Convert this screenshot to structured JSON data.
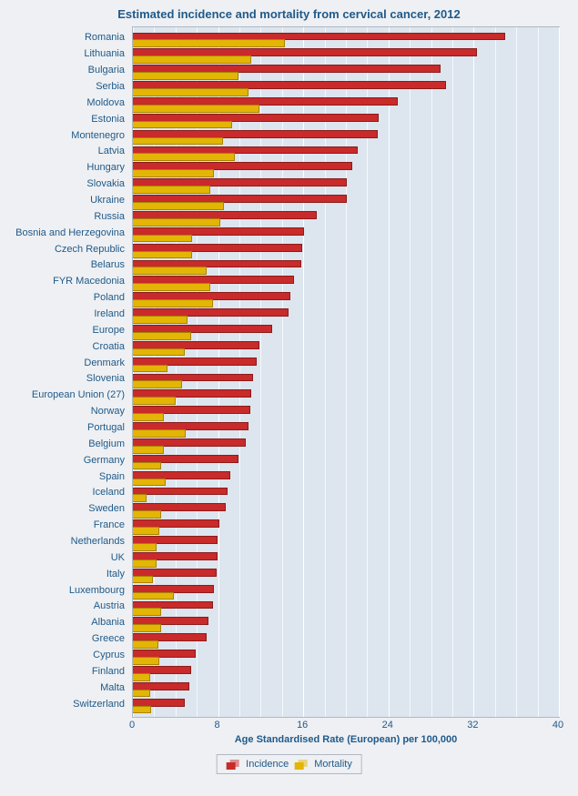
{
  "title": "Estimated incidence and mortality from cervical cancer, 2012",
  "title_fontsize": 13,
  "background_color": "#eef0f3",
  "plot_background_color": "#dde5ee",
  "grid_color": "#ffffff",
  "axis_text_color": "#205a8a",
  "label_fontsize": 11,
  "tick_fontsize": 11,
  "xlabel": "Age Standardised Rate (European) per 100,000",
  "xlabel_fontsize": 11,
  "xlim": [
    0,
    40
  ],
  "xtick_step_major": 8,
  "xtick_step_minor": 2,
  "series": {
    "incidence": {
      "label": "Incidence",
      "color": "#c92a2a",
      "border": "#8a1c1c"
    },
    "mortality": {
      "label": "Mortality",
      "color": "#e3b505",
      "border": "#a78300"
    }
  },
  "countries": [
    {
      "name": "Romania",
      "incidence": 34.9,
      "mortality": 14.2
    },
    {
      "name": "Lithuania",
      "incidence": 32.2,
      "mortality": 11.0
    },
    {
      "name": "Bulgaria",
      "incidence": 28.8,
      "mortality": 9.8
    },
    {
      "name": "Serbia",
      "incidence": 29.3,
      "mortality": 10.8
    },
    {
      "name": "Moldova",
      "incidence": 24.8,
      "mortality": 11.8
    },
    {
      "name": "Estonia",
      "incidence": 23.0,
      "mortality": 9.2
    },
    {
      "name": "Montenegro",
      "incidence": 22.9,
      "mortality": 8.4
    },
    {
      "name": "Latvia",
      "incidence": 21.0,
      "mortality": 9.5
    },
    {
      "name": "Hungary",
      "incidence": 20.5,
      "mortality": 7.5
    },
    {
      "name": "Slovakia",
      "incidence": 20.0,
      "mortality": 7.2
    },
    {
      "name": "Ukraine",
      "incidence": 20.0,
      "mortality": 8.5
    },
    {
      "name": "Russia",
      "incidence": 17.2,
      "mortality": 8.1
    },
    {
      "name": "Bosnia and Herzegovina",
      "incidence": 16.0,
      "mortality": 5.5
    },
    {
      "name": "Czech Republic",
      "incidence": 15.8,
      "mortality": 5.5
    },
    {
      "name": "Belarus",
      "incidence": 15.7,
      "mortality": 6.8
    },
    {
      "name": "FYR Macedonia",
      "incidence": 15.0,
      "mortality": 7.2
    },
    {
      "name": "Poland",
      "incidence": 14.7,
      "mortality": 7.4
    },
    {
      "name": "Ireland",
      "incidence": 14.5,
      "mortality": 5.0
    },
    {
      "name": "Europe",
      "incidence": 13.0,
      "mortality": 5.4
    },
    {
      "name": "Croatia",
      "incidence": 11.8,
      "mortality": 4.8
    },
    {
      "name": "Denmark",
      "incidence": 11.5,
      "mortality": 3.2
    },
    {
      "name": "Slovenia",
      "incidence": 11.2,
      "mortality": 4.5
    },
    {
      "name": "European Union (27)",
      "incidence": 11.0,
      "mortality": 3.9
    },
    {
      "name": "Norway",
      "incidence": 10.9,
      "mortality": 2.8
    },
    {
      "name": "Portugal",
      "incidence": 10.8,
      "mortality": 4.9
    },
    {
      "name": "Belgium",
      "incidence": 10.5,
      "mortality": 2.8
    },
    {
      "name": "Germany",
      "incidence": 9.8,
      "mortality": 2.6
    },
    {
      "name": "Spain",
      "incidence": 9.1,
      "mortality": 3.0
    },
    {
      "name": "Iceland",
      "incidence": 8.8,
      "mortality": 1.2
    },
    {
      "name": "Sweden",
      "incidence": 8.6,
      "mortality": 2.6
    },
    {
      "name": "France",
      "incidence": 8.0,
      "mortality": 2.4
    },
    {
      "name": "Netherlands",
      "incidence": 7.9,
      "mortality": 2.1
    },
    {
      "name": "UK",
      "incidence": 7.9,
      "mortality": 2.1
    },
    {
      "name": "Italy",
      "incidence": 7.8,
      "mortality": 1.8
    },
    {
      "name": "Luxembourg",
      "incidence": 7.5,
      "mortality": 3.8
    },
    {
      "name": "Austria",
      "incidence": 7.4,
      "mortality": 2.6
    },
    {
      "name": "Albania",
      "incidence": 7.0,
      "mortality": 2.6
    },
    {
      "name": "Greece",
      "incidence": 6.8,
      "mortality": 2.3
    },
    {
      "name": "Cyprus",
      "incidence": 5.8,
      "mortality": 2.4
    },
    {
      "name": "Finland",
      "incidence": 5.4,
      "mortality": 1.5
    },
    {
      "name": "Malta",
      "incidence": 5.2,
      "mortality": 1.5
    },
    {
      "name": "Switzerland",
      "incidence": 4.8,
      "mortality": 1.6
    }
  ],
  "legend": {
    "incidence": "Incidence",
    "mortality": "Mortality"
  }
}
